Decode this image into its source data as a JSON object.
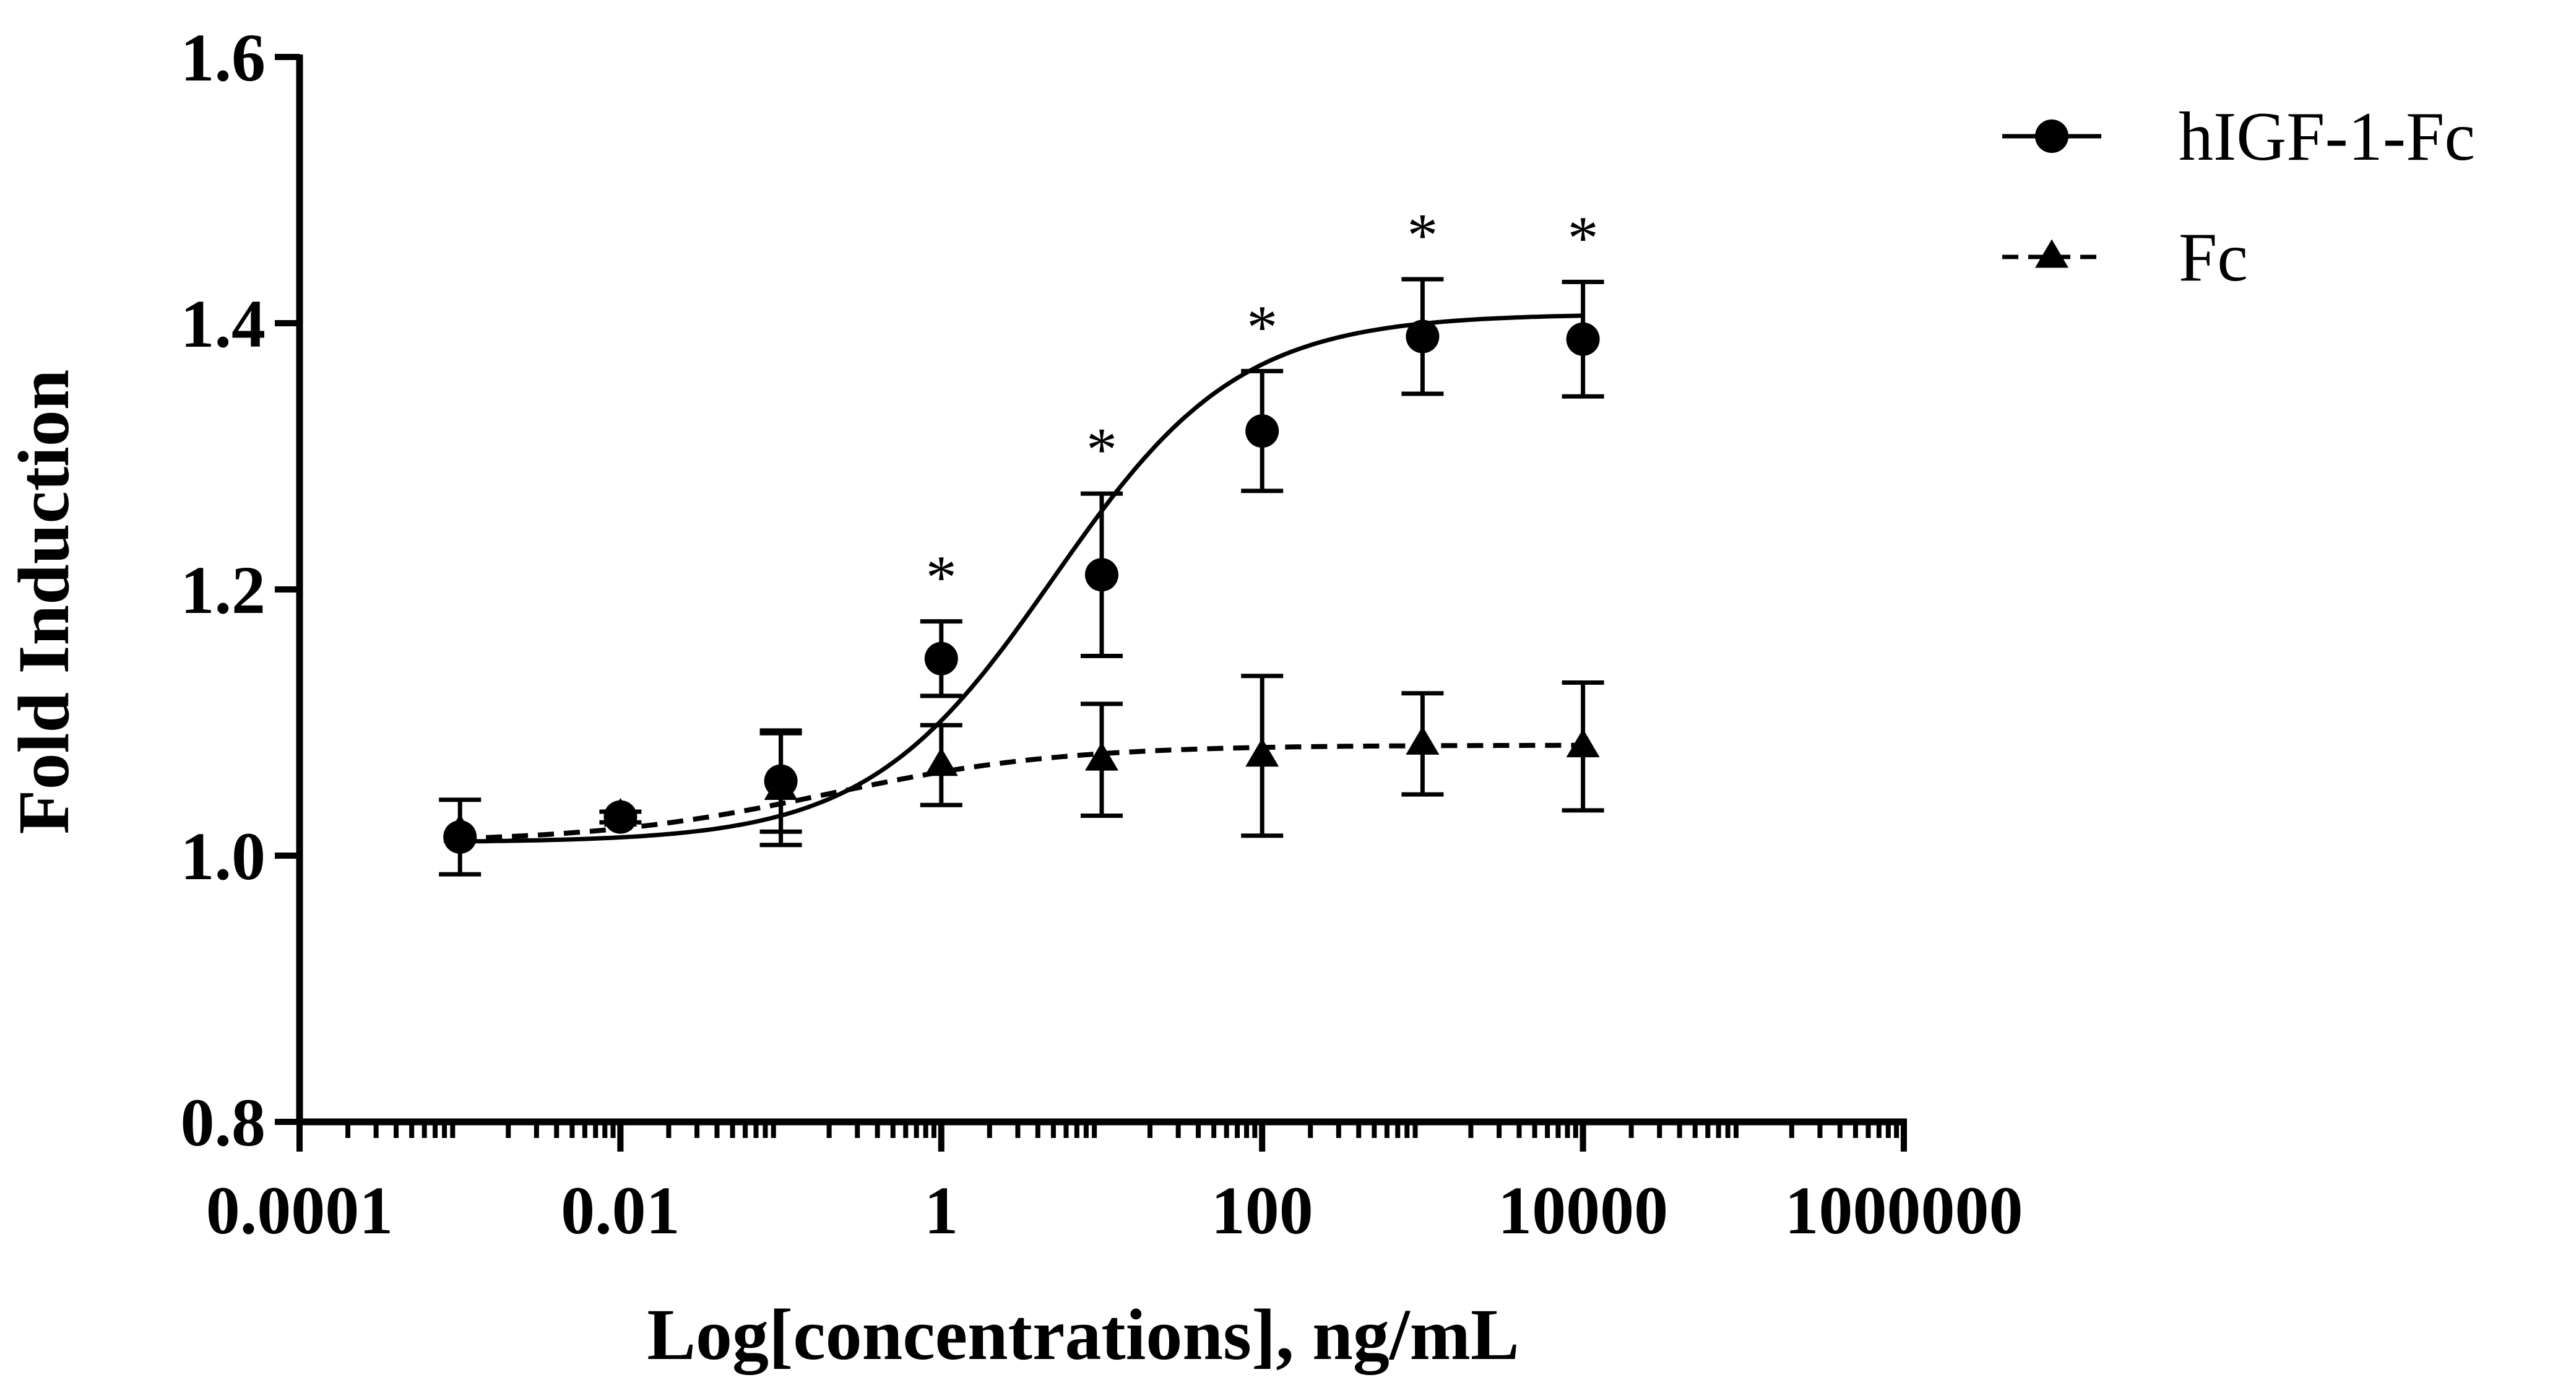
{
  "chart_data": {
    "type": "scatter",
    "xscale": "log",
    "xlabel": "Log[concentrations], ng/mL",
    "ylabel": "Fold Induction",
    "xlim": [
      0.0001,
      1000000
    ],
    "ylim": [
      0.8,
      1.6
    ],
    "xticks": [
      {
        "value": 0.0001,
        "label": "0.0001"
      },
      {
        "value": 0.01,
        "label": "0.01"
      },
      {
        "value": 1,
        "label": "1"
      },
      {
        "value": 100,
        "label": "100"
      },
      {
        "value": 10000,
        "label": "10000"
      },
      {
        "value": 1000000,
        "label": "1000000"
      }
    ],
    "yticks": [
      {
        "value": 0.8,
        "label": "0.8"
      },
      {
        "value": 1.0,
        "label": "1.0"
      },
      {
        "value": 1.2,
        "label": "1.2"
      },
      {
        "value": 1.4,
        "label": "1.4"
      },
      {
        "value": 1.6,
        "label": "1.6"
      }
    ],
    "grid": false,
    "legend_position": "top-right",
    "series": [
      {
        "name": "hIGF-1-Fc",
        "marker": "circle",
        "line": "solid",
        "x": [
          0.001,
          0.01,
          0.1,
          1,
          10,
          100,
          1000,
          10000
        ],
        "y": [
          1.014,
          1.029,
          1.056,
          1.148,
          1.211,
          1.319,
          1.39,
          1.388
        ],
        "err": [
          0.028,
          0.004,
          0.038,
          0.028,
          0.061,
          0.045,
          0.043,
          0.043
        ],
        "fit": {
          "bottom": 1.01,
          "top": 1.407,
          "ec50": 5.0,
          "hill": 0.75
        },
        "significant": [
          false,
          false,
          false,
          true,
          true,
          true,
          true,
          true
        ],
        "annotation": "*"
      },
      {
        "name": "Fc",
        "marker": "triangle",
        "line": "dashed",
        "x": [
          0.001,
          0.01,
          0.1,
          1,
          10,
          100,
          1000,
          10000
        ],
        "y": [
          1.018,
          1.03,
          1.05,
          1.068,
          1.072,
          1.075,
          1.084,
          1.082
        ],
        "err": [
          0.0,
          0.0,
          0.042,
          0.03,
          0.042,
          0.06,
          0.038,
          0.048
        ],
        "fit": {
          "bottom": 1.01,
          "top": 1.083,
          "ec50": 0.2,
          "hill": 0.6
        }
      }
    ]
  }
}
